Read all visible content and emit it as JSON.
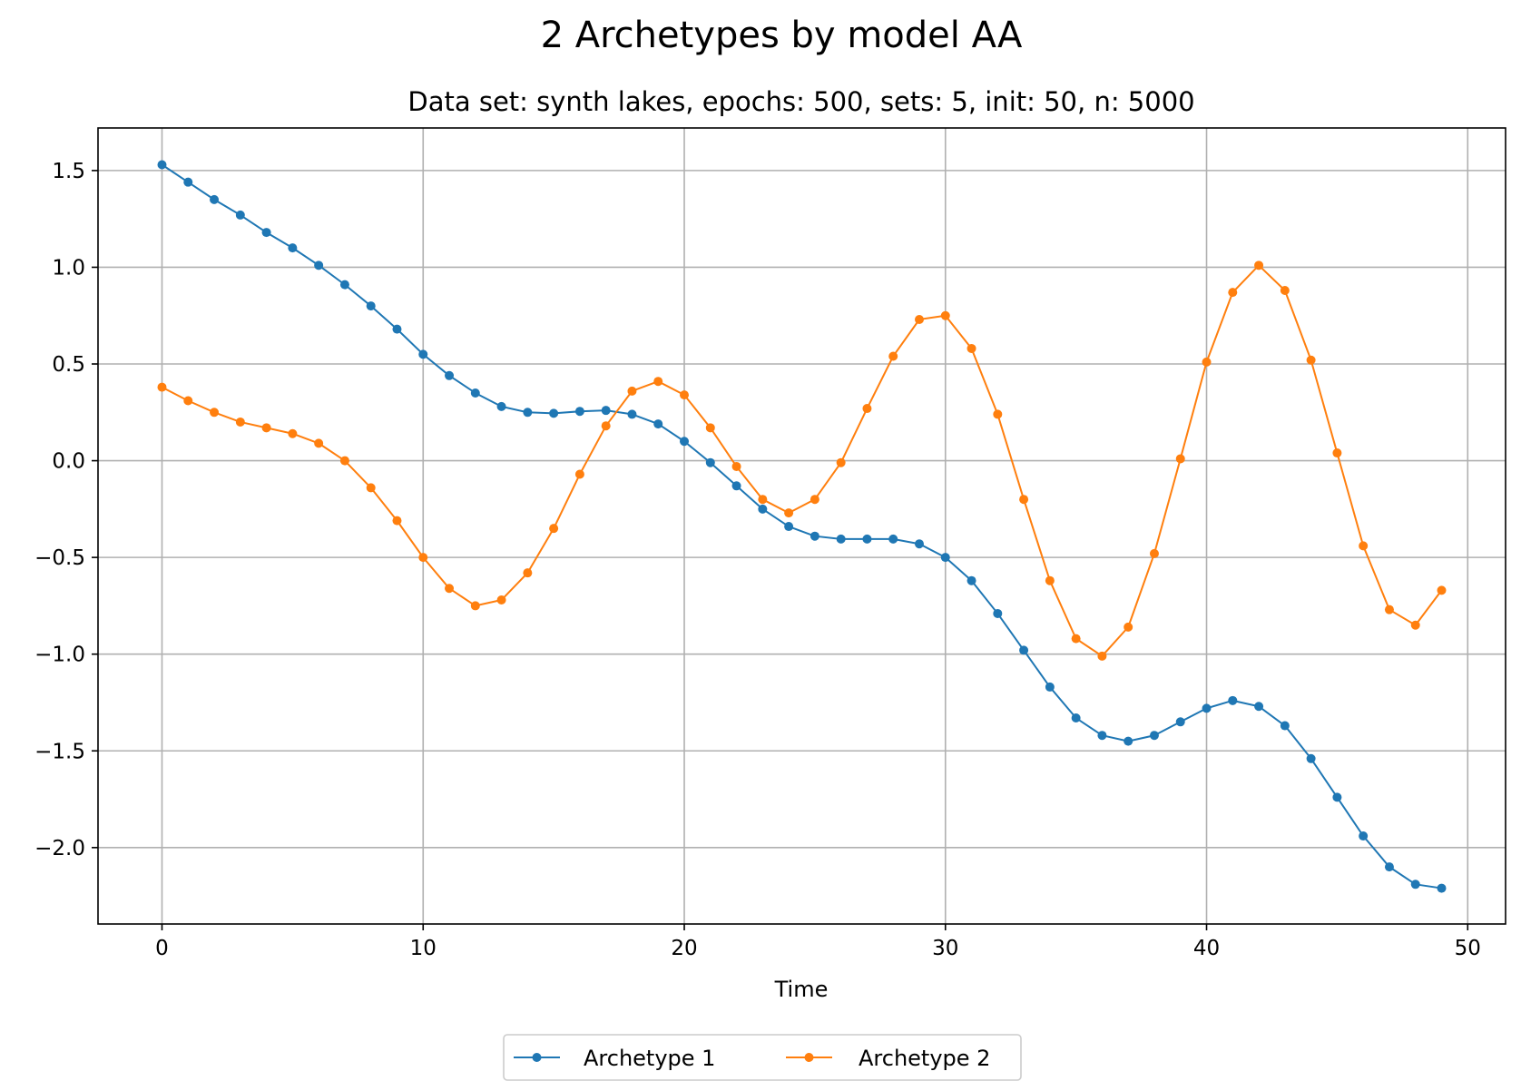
{
  "chart_data": {
    "type": "line",
    "suptitle": "2 Archetypes by model AA",
    "title": "Data set: synth lakes, epochs: 500, sets: 5, init: 50, n: 5000",
    "xlabel": "Time",
    "ylabel": "",
    "xlim": [
      -2.45,
      51.45
    ],
    "ylim": [
      -2.395,
      1.72
    ],
    "xticks": [
      0,
      10,
      20,
      30,
      40,
      50
    ],
    "xtick_labels": [
      "0",
      "10",
      "20",
      "30",
      "40",
      "50"
    ],
    "yticks": [
      1.5,
      1.0,
      0.5,
      0.0,
      -0.5,
      -1.0,
      -1.5,
      -2.0
    ],
    "ytick_labels": [
      "1.5",
      "1.0",
      "0.5",
      "0.0",
      "−0.5",
      "−1.0",
      "−1.5",
      "−2.0"
    ],
    "grid": true,
    "legend_position": "lower-center",
    "x": [
      0,
      1,
      2,
      3,
      4,
      5,
      6,
      7,
      8,
      9,
      10,
      11,
      12,
      13,
      14,
      15,
      16,
      17,
      18,
      19,
      20,
      21,
      22,
      23,
      24,
      25,
      26,
      27,
      28,
      29,
      30,
      31,
      32,
      33,
      34,
      35,
      36,
      37,
      38,
      39,
      40,
      41,
      42,
      43,
      44,
      45,
      46,
      47,
      48,
      49
    ],
    "series": [
      {
        "name": "Archetype 1",
        "color": "#1f77b4",
        "values": [
          1.53,
          1.44,
          1.35,
          1.27,
          1.18,
          1.1,
          1.01,
          0.91,
          0.8,
          0.68,
          0.55,
          0.44,
          0.35,
          0.28,
          0.25,
          0.245,
          0.255,
          0.26,
          0.24,
          0.19,
          0.1,
          -0.01,
          -0.13,
          -0.25,
          -0.34,
          -0.39,
          -0.405,
          -0.405,
          -0.405,
          -0.43,
          -0.5,
          -0.62,
          -0.79,
          -0.98,
          -1.17,
          -1.33,
          -1.42,
          -1.45,
          -1.42,
          -1.35,
          -1.28,
          -1.24,
          -1.27,
          -1.37,
          -1.54,
          -1.74,
          -1.94,
          -2.1,
          -2.19,
          -2.21
        ]
      },
      {
        "name": "Archetype 2",
        "color": "#ff7f0e",
        "values": [
          0.38,
          0.31,
          0.25,
          0.2,
          0.17,
          0.14,
          0.09,
          0.0,
          -0.14,
          -0.31,
          -0.5,
          -0.66,
          -0.75,
          -0.72,
          -0.58,
          -0.35,
          -0.07,
          0.18,
          0.36,
          0.41,
          0.34,
          0.17,
          -0.03,
          -0.2,
          -0.27,
          -0.2,
          -0.01,
          0.27,
          0.54,
          0.73,
          0.75,
          0.58,
          0.24,
          -0.2,
          -0.62,
          -0.92,
          -1.01,
          -0.86,
          -0.48,
          0.01,
          0.51,
          0.87,
          1.01,
          0.88,
          0.52,
          0.04,
          -0.44,
          -0.77,
          -0.85,
          -0.67
        ]
      }
    ]
  }
}
